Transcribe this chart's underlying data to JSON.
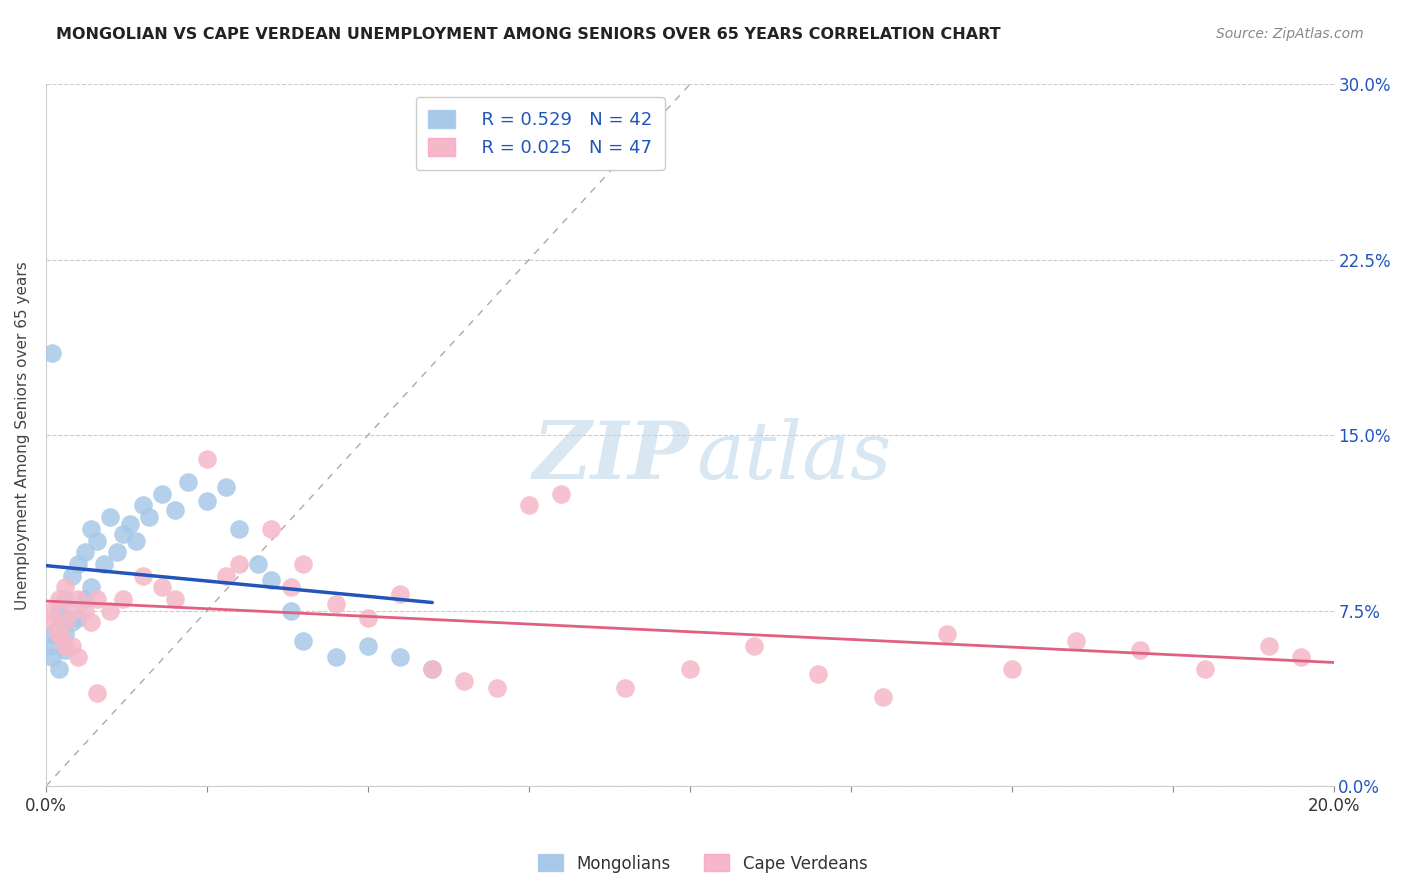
{
  "title": "MONGOLIAN VS CAPE VERDEAN UNEMPLOYMENT AMONG SENIORS OVER 65 YEARS CORRELATION CHART",
  "source": "Source: ZipAtlas.com",
  "ylabel": "Unemployment Among Seniors over 65 years",
  "xlim": [
    0.0,
    0.2
  ],
  "ylim": [
    0.0,
    0.3
  ],
  "xtick_show": [
    0.0,
    0.2
  ],
  "yticks": [
    0.0,
    0.075,
    0.15,
    0.225,
    0.3
  ],
  "ytick_labels": [
    "0.0%",
    "7.5%",
    "15.0%",
    "22.5%",
    "30.0%"
  ],
  "mongolian_R": 0.529,
  "mongolian_N": 42,
  "capeverdean_R": 0.025,
  "capeverdean_N": 47,
  "mongolian_color": "#a8c8e8",
  "mongolian_line_color": "#2255bb",
  "capeverdean_color": "#f5b8c8",
  "capeverdean_line_color": "#e06080",
  "background_color": "#ffffff",
  "mongolian_x": [
    0.001,
    0.001,
    0.001,
    0.002,
    0.002,
    0.002,
    0.003,
    0.003,
    0.003,
    0.003,
    0.004,
    0.004,
    0.005,
    0.005,
    0.006,
    0.006,
    0.007,
    0.007,
    0.008,
    0.009,
    0.01,
    0.011,
    0.012,
    0.013,
    0.014,
    0.015,
    0.016,
    0.018,
    0.02,
    0.022,
    0.025,
    0.028,
    0.03,
    0.033,
    0.035,
    0.038,
    0.04,
    0.045,
    0.05,
    0.055,
    0.06,
    0.001
  ],
  "mongolian_y": [
    0.065,
    0.06,
    0.055,
    0.075,
    0.068,
    0.05,
    0.08,
    0.065,
    0.072,
    0.058,
    0.09,
    0.07,
    0.095,
    0.072,
    0.1,
    0.08,
    0.11,
    0.085,
    0.105,
    0.095,
    0.115,
    0.1,
    0.108,
    0.112,
    0.105,
    0.12,
    0.115,
    0.125,
    0.118,
    0.13,
    0.122,
    0.128,
    0.11,
    0.095,
    0.088,
    0.075,
    0.062,
    0.055,
    0.06,
    0.055,
    0.05,
    0.185
  ],
  "capeverdean_x": [
    0.001,
    0.001,
    0.002,
    0.002,
    0.003,
    0.003,
    0.004,
    0.004,
    0.005,
    0.006,
    0.007,
    0.008,
    0.01,
    0.012,
    0.015,
    0.018,
    0.02,
    0.025,
    0.028,
    0.03,
    0.035,
    0.038,
    0.04,
    0.045,
    0.05,
    0.055,
    0.06,
    0.065,
    0.07,
    0.075,
    0.08,
    0.09,
    0.1,
    0.11,
    0.12,
    0.13,
    0.14,
    0.15,
    0.16,
    0.17,
    0.18,
    0.19,
    0.195,
    0.002,
    0.003,
    0.005,
    0.008
  ],
  "capeverdean_y": [
    0.075,
    0.07,
    0.08,
    0.065,
    0.085,
    0.07,
    0.075,
    0.06,
    0.08,
    0.075,
    0.07,
    0.08,
    0.075,
    0.08,
    0.09,
    0.085,
    0.08,
    0.14,
    0.09,
    0.095,
    0.11,
    0.085,
    0.095,
    0.078,
    0.072,
    0.082,
    0.05,
    0.045,
    0.042,
    0.12,
    0.125,
    0.042,
    0.05,
    0.06,
    0.048,
    0.038,
    0.065,
    0.05,
    0.062,
    0.058,
    0.05,
    0.06,
    0.055,
    0.065,
    0.06,
    0.055,
    0.04
  ]
}
